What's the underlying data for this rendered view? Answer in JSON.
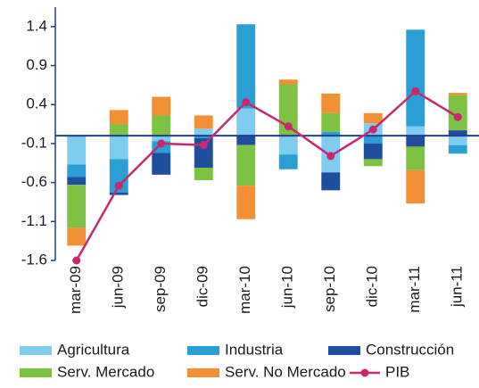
{
  "chart_data": {
    "type": "stacked_bar_line",
    "categories": [
      "mar-09",
      "jun-09",
      "sep-09",
      "dic-09",
      "mar-10",
      "jun-10",
      "sep-10",
      "dic-10",
      "mar-11",
      "jun-11"
    ],
    "series": [
      {
        "name": "Agricultura",
        "color": "#7fcdee",
        "values": [
          -0.37,
          -0.3,
          -0.07,
          0.09,
          0.35,
          -0.24,
          -0.47,
          0.16,
          0.12,
          -0.12
        ]
      },
      {
        "name": "Industria",
        "color": "#2a9fd6",
        "values": [
          -0.16,
          -0.43,
          -0.15,
          -0.03,
          1.08,
          -0.19,
          0.05,
          -0.1,
          1.24,
          -0.11
        ]
      },
      {
        "name": "Construcción",
        "color": "#1f4e9c",
        "values": [
          -0.1,
          -0.03,
          -0.28,
          -0.38,
          -0.12,
          0,
          -0.23,
          -0.2,
          -0.14,
          0.07
        ]
      },
      {
        "name": "Serv. Mercado",
        "color": "#7dc242",
        "values": [
          -0.55,
          0.15,
          0.26,
          -0.16,
          -0.52,
          0.66,
          0.24,
          -0.09,
          -0.3,
          0.45
        ]
      },
      {
        "name": "Serv. No Mercado",
        "color": "#f39033",
        "values": [
          -0.23,
          0.18,
          0.24,
          0.17,
          -0.43,
          0.06,
          0.25,
          0.13,
          -0.43,
          0.03
        ]
      },
      {
        "name": "PIB",
        "color": "#c8286e",
        "type": "line",
        "values": [
          -1.6,
          -0.64,
          -0.1,
          -0.12,
          0.43,
          0.12,
          -0.26,
          0.08,
          0.57,
          0.24
        ]
      }
    ],
    "ylim": [
      -1.6,
      1.65
    ],
    "yticks": [
      -1.6,
      -1.1,
      -0.6,
      -0.1,
      0.4,
      0.9,
      1.4
    ]
  }
}
